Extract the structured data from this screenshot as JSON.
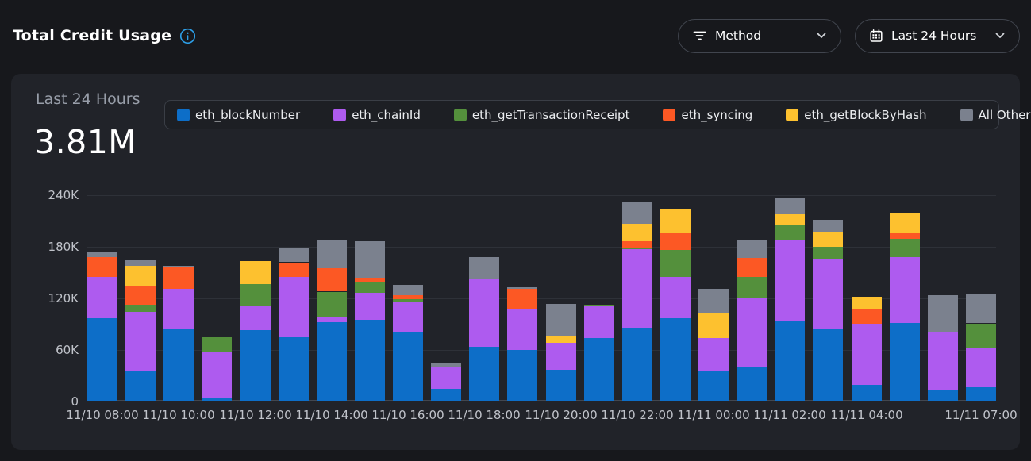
{
  "header": {
    "title": "Total Credit Usage",
    "accent_color": "#2d9fe8",
    "filters": {
      "method_label": "Method",
      "range_label": "Last 24 Hours"
    }
  },
  "card": {
    "period_label": "Last 24 Hours",
    "total": "3.81M"
  },
  "chart_data": {
    "type": "bar",
    "stacked": true,
    "title": "Total Credit Usage - Last 24 Hours",
    "unit": "credits (values in thousands)",
    "total_label": "3.81M",
    "ylim_k": [
      0,
      240
    ],
    "grid": true,
    "legend_position": "top",
    "y_ticks": [
      {
        "value": 0,
        "label": "0"
      },
      {
        "value": 60,
        "label": "60K"
      },
      {
        "value": 120,
        "label": "120K"
      },
      {
        "value": 180,
        "label": "180K"
      },
      {
        "value": 240,
        "label": "240K"
      }
    ],
    "x": [
      "11/10 08:00",
      "11/10 09:00",
      "11/10 10:00",
      "11/10 11:00",
      "11/10 12:00",
      "11/10 13:00",
      "11/10 14:00",
      "11/10 15:00",
      "11/10 16:00",
      "11/10 17:00",
      "11/10 18:00",
      "11/10 19:00",
      "11/10 20:00",
      "11/10 21:00",
      "11/10 22:00",
      "11/10 23:00",
      "11/11 00:00",
      "11/11 01:00",
      "11/11 02:00",
      "11/11 03:00",
      "11/11 04:00",
      "11/11 05:00",
      "11/11 06:00",
      "11/11 07:00"
    ],
    "x_tick_labels": [
      "11/10 08:00",
      "",
      "11/10 10:00",
      "",
      "11/10 12:00",
      "",
      "11/10 14:00",
      "",
      "11/10 16:00",
      "",
      "11/10 18:00",
      "",
      "11/10 20:00",
      "",
      "11/10 22:00",
      "",
      "11/11 00:00",
      "",
      "11/11 02:00",
      "",
      "11/11 04:00",
      "",
      "",
      "11/11 07:00"
    ],
    "series": [
      {
        "name": "eth_blockNumber",
        "color": "#0d6ec8",
        "values_k": [
          97,
          36,
          84,
          5,
          83,
          75,
          92,
          95,
          80,
          15,
          64,
          60,
          37,
          74,
          85,
          97,
          35,
          41,
          93,
          84,
          19,
          91,
          13,
          17
        ]
      },
      {
        "name": "eth_chainId",
        "color": "#ae5bef",
        "values_k": [
          48,
          68,
          47,
          53,
          28,
          70,
          7,
          31,
          36,
          26,
          78,
          47,
          31,
          37,
          92,
          48,
          39,
          80,
          95,
          82,
          71,
          77,
          68,
          45
        ]
      },
      {
        "name": "eth_getTransactionReceipt",
        "color": "#54903c",
        "values_k": [
          0,
          9,
          0,
          17,
          26,
          0,
          29,
          13,
          3,
          0,
          0,
          0,
          0,
          2,
          1,
          31,
          0,
          24,
          18,
          14,
          0,
          21,
          0,
          29
        ]
      },
      {
        "name": "eth_syncing",
        "color": "#fc5824",
        "values_k": [
          23,
          21,
          25,
          0,
          0,
          17,
          27,
          5,
          5,
          0,
          1,
          24,
          0,
          0,
          8,
          20,
          0,
          22,
          0,
          0,
          18,
          7,
          0,
          0
        ]
      },
      {
        "name": "eth_getBlockByHash",
        "color": "#fdc12f",
        "values_k": [
          0,
          24,
          0,
          0,
          27,
          0,
          0,
          0,
          0,
          0,
          0,
          0,
          9,
          0,
          21,
          29,
          29,
          0,
          12,
          17,
          14,
          23,
          0,
          0
        ]
      },
      {
        "name": "All Other",
        "color": "#7b818e",
        "values_k": [
          6,
          6,
          2,
          0,
          0,
          16,
          32,
          42,
          12,
          5,
          25,
          2,
          37,
          0,
          26,
          0,
          28,
          21,
          19,
          15,
          0,
          0,
          42,
          33
        ]
      }
    ]
  }
}
